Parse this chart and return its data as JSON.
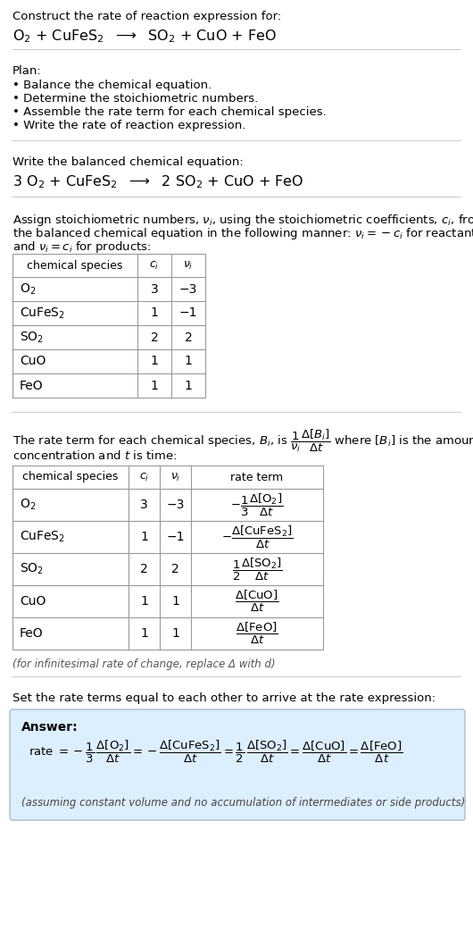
{
  "title_line1": "Construct the rate of reaction expression for:",
  "plan_header": "Plan:",
  "plan_items": [
    "• Balance the chemical equation.",
    "• Determine the stoichiometric numbers.",
    "• Assemble the rate term for each chemical species.",
    "• Write the rate of reaction expression."
  ],
  "balanced_header": "Write the balanced chemical equation:",
  "table1_rows": [
    [
      "O_2",
      "3",
      "−3"
    ],
    [
      "CuFeS_2",
      "1",
      "−1"
    ],
    [
      "SO_2",
      "2",
      "2"
    ],
    [
      "CuO",
      "1",
      "1"
    ],
    [
      "FeO",
      "1",
      "1"
    ]
  ],
  "table2_rows": [
    [
      "O_2",
      "3",
      "−3"
    ],
    [
      "CuFeS_2",
      "1",
      "−1"
    ],
    [
      "SO_2",
      "2",
      "2"
    ],
    [
      "CuO",
      "1",
      "1"
    ],
    [
      "FeO",
      "1",
      "1"
    ]
  ],
  "infinitesimal_note": "(for infinitesimal rate of change, replace Δ with d)",
  "set_equal_text": "Set the rate terms equal to each other to arrive at the rate expression:",
  "answer_box_bg": "#ddeeff",
  "answer_label": "Answer:",
  "assuming_note": "(assuming constant volume and no accumulation of intermediates or side products)",
  "bg_color": "#ffffff",
  "table_border_color": "#999999",
  "separator_color": "#cccccc"
}
